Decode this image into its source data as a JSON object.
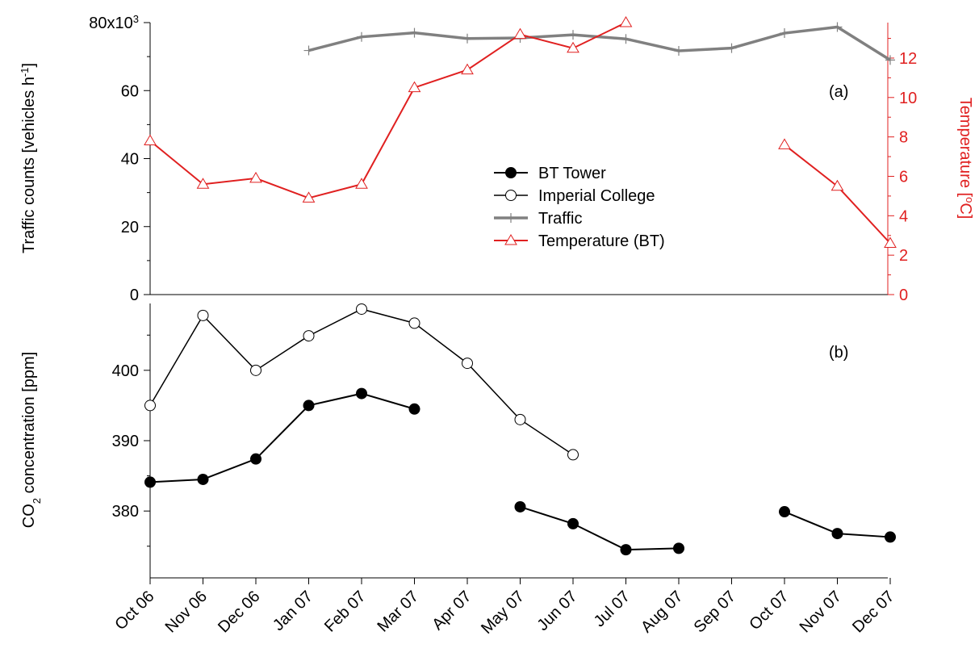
{
  "chart_data": [
    {
      "panel_label": "(a)",
      "type": "line",
      "x": [
        "Oct 06",
        "Nov 06",
        "Dec 06",
        "Jan 07",
        "Feb 07",
        "Mar 07",
        "Apr 07",
        "May 07",
        "Jun 07",
        "Jul 07",
        "Aug 07",
        "Sep 07",
        "Oct 07",
        "Nov 07",
        "Dec 07"
      ],
      "ylabel": "Traffic counts [vehicles h",
      "ylabel_sup": "-1",
      "ylabel_close": "]",
      "y_ticks": [
        "0",
        "20",
        "40",
        "60"
      ],
      "y_top_tick_base": "80x10",
      "y_top_tick_sup": "3",
      "ylim": [
        0,
        80000
      ],
      "y2label": "Temperature [",
      "y2label_sup": "o",
      "y2label_close": "C]",
      "y2_ticks": [
        "0",
        "2",
        "4",
        "6",
        "8",
        "10",
        "12"
      ],
      "y2lim": [
        0,
        13.8
      ],
      "series": [
        {
          "name": "Traffic",
          "axis": "left",
          "color": "#808080",
          "marker": "plus",
          "values": [
            null,
            null,
            null,
            71800,
            75800,
            77000,
            75300,
            75500,
            76400,
            75200,
            71700,
            72500,
            76900,
            78700,
            69000
          ]
        },
        {
          "name": "Temperature (BT)",
          "axis": "right",
          "color": "#e02020",
          "marker": "triangle-open",
          "values": [
            7.8,
            5.6,
            5.9,
            4.9,
            5.6,
            10.5,
            11.4,
            13.2,
            12.5,
            13.8,
            null,
            null,
            7.6,
            5.5,
            2.6
          ],
          "x_override": [
            0,
            1,
            2,
            3,
            4,
            5,
            6,
            7,
            8,
            9,
            null,
            null,
            12,
            13,
            14
          ]
        }
      ],
      "legend": {
        "position": "center",
        "entries": [
          {
            "label": "BT Tower",
            "style": "filled-circle",
            "color": "#000000"
          },
          {
            "label": "Imperial College",
            "style": "open-circle",
            "color": "#000000"
          },
          {
            "label": "Traffic",
            "style": "plus",
            "color": "#808080"
          },
          {
            "label": "Temperature (BT)",
            "style": "triangle-open",
            "color": "#e02020"
          }
        ]
      }
    },
    {
      "panel_label": "(b)",
      "type": "line",
      "x": [
        "Oct 06",
        "Nov 06",
        "Dec 06",
        "Jan 07",
        "Feb 07",
        "Mar 07",
        "Apr 07",
        "May 07",
        "Jun 07",
        "Jul 07",
        "Aug 07",
        "Sep 07",
        "Oct 07",
        "Nov 07",
        "Dec 07"
      ],
      "ylabel_pre": "CO",
      "ylabel_sub": "2",
      "ylabel_post": " concentration [ppm]",
      "y_ticks": [
        "380",
        "390",
        "400"
      ],
      "ylim": [
        370.5,
        409.5
      ],
      "series": [
        {
          "name": "Imperial College",
          "color": "#000000",
          "marker": "open-circle",
          "segments": [
            [
              [
                0,
                395.0
              ],
              [
                1,
                407.8
              ],
              [
                2,
                400.0
              ],
              [
                3,
                404.9
              ],
              [
                4,
                408.7
              ],
              [
                5,
                406.7
              ],
              [
                6,
                401.0
              ],
              [
                7,
                393.0
              ],
              [
                8,
                388.0
              ]
            ]
          ]
        },
        {
          "name": "BT Tower",
          "color": "#000000",
          "marker": "filled-circle",
          "segments": [
            [
              [
                0,
                384.1
              ],
              [
                1,
                384.5
              ],
              [
                2,
                387.4
              ],
              [
                3,
                395.0
              ],
              [
                4,
                396.7
              ],
              [
                5,
                394.5
              ]
            ],
            [
              [
                7,
                380.6
              ],
              [
                8,
                378.2
              ],
              [
                9,
                374.5
              ],
              [
                10,
                374.7
              ]
            ],
            [
              [
                12,
                379.9
              ],
              [
                13,
                376.8
              ],
              [
                14,
                376.3
              ]
            ]
          ]
        }
      ]
    }
  ]
}
